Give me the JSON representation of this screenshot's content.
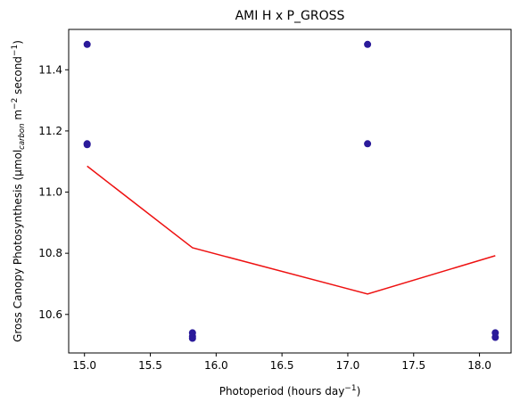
{
  "chart_data": {
    "type": "scatter",
    "title": "AMI H x P_GROSS",
    "xlabel": {
      "main": "Photoperiod (hours day",
      "sup": "−1",
      "end": ")"
    },
    "ylabel": {
      "pre": "Gross Canopy Photosynthesis (µmol",
      "sub": "carbon",
      "mid": " m",
      "sup1": "−2",
      "mid2": " second",
      "sup2": "−1",
      "end": ")"
    },
    "xlim": [
      14.88,
      18.24
    ],
    "ylim": [
      10.474,
      11.532
    ],
    "xticks": [
      15.0,
      15.5,
      16.0,
      16.5,
      17.0,
      17.5,
      18.0
    ],
    "xtick_labels": [
      "15.0",
      "15.5",
      "16.0",
      "16.5",
      "17.0",
      "17.5",
      "18.0"
    ],
    "yticks": [
      10.6,
      10.8,
      11.0,
      11.2,
      11.4
    ],
    "ytick_labels": [
      "10.6",
      "10.8",
      "11.0",
      "11.2",
      "11.4"
    ],
    "grid": false,
    "series": [
      {
        "kind": "points",
        "color": "#2a1a9a",
        "points": [
          [
            15.02,
            11.483
          ],
          [
            15.02,
            11.158
          ],
          [
            15.02,
            11.155
          ],
          [
            15.82,
            10.54
          ],
          [
            15.82,
            10.528
          ],
          [
            15.82,
            10.522
          ],
          [
            17.15,
            11.483
          ],
          [
            17.15,
            11.158
          ],
          [
            18.12,
            10.54
          ],
          [
            18.12,
            10.525
          ]
        ]
      },
      {
        "kind": "line",
        "color": "#ee1111",
        "points": [
          [
            15.02,
            11.085
          ],
          [
            15.82,
            10.818
          ],
          [
            17.15,
            10.667
          ],
          [
            18.12,
            10.792
          ]
        ]
      }
    ]
  }
}
